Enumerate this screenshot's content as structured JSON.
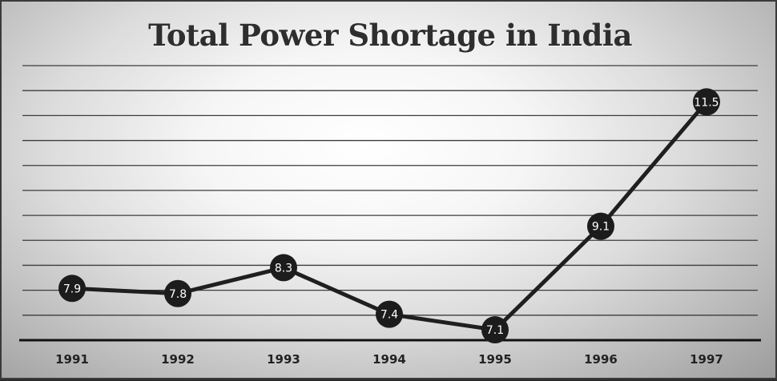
{
  "chart_data": {
    "type": "line",
    "title": "Total Power Shortage in India",
    "xlabel": "",
    "ylabel": "",
    "categories": [
      "1991",
      "1992",
      "1993",
      "1994",
      "1995",
      "1996",
      "1997"
    ],
    "series": [
      {
        "values": [
          7.9,
          7.8,
          8.3,
          7.4,
          7.1,
          9.1,
          11.5
        ]
      }
    ],
    "ylim": [
      6.9,
      12.2
    ],
    "grid": true,
    "legend": "none",
    "data_labels": true,
    "colors": {
      "line": "#1f1f1f",
      "marker": "#1c1c1c",
      "label": "#ffffff"
    }
  }
}
